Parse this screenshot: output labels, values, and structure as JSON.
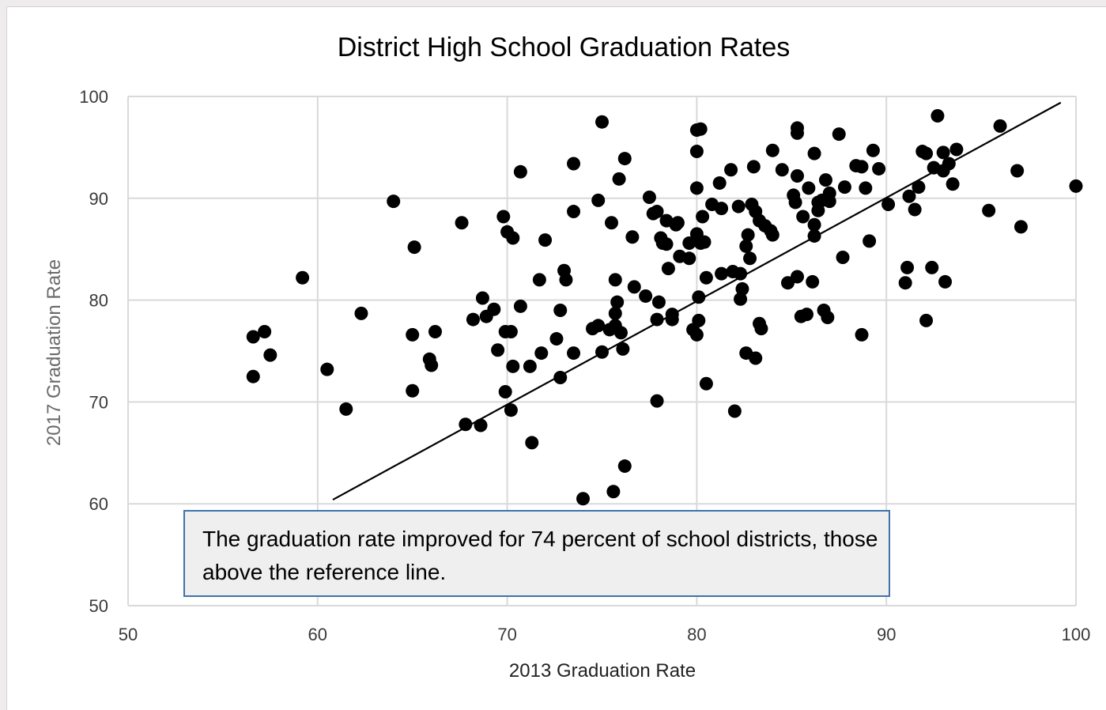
{
  "chart_data": {
    "type": "scatter",
    "title": "District High School Graduation Rates",
    "xlabel": "2013 Graduation Rate",
    "ylabel": "2017 Graduation Rate",
    "xlim": [
      50,
      100
    ],
    "ylim": [
      50,
      100
    ],
    "xticks": [
      "50",
      "60",
      "70",
      "80",
      "90",
      "100"
    ],
    "yticks": [
      "50",
      "60",
      "70",
      "80",
      "90",
      "100"
    ],
    "grid": true,
    "marker_color": "#000000",
    "reference_line": {
      "from": [
        60.8,
        60.4
      ],
      "to": [
        99.2,
        99.4
      ],
      "color": "#000000"
    },
    "annotation": "The graduation rate improved for 74 percent of school districts, those above the reference line.",
    "points": [
      [
        56.6,
        76.4
      ],
      [
        57.2,
        76.9
      ],
      [
        57.5,
        74.6
      ],
      [
        56.6,
        72.5
      ],
      [
        59.2,
        82.2
      ],
      [
        60.5,
        73.2
      ],
      [
        61.5,
        69.3
      ],
      [
        62.3,
        78.7
      ],
      [
        64,
        89.7
      ],
      [
        65.1,
        85.2
      ],
      [
        65,
        76.6
      ],
      [
        65,
        71.1
      ],
      [
        65.9,
        74.2
      ],
      [
        66,
        73.6
      ],
      [
        66.2,
        76.9
      ],
      [
        67.6,
        87.6
      ],
      [
        67.8,
        67.8
      ],
      [
        68.2,
        78.1
      ],
      [
        68.6,
        67.7
      ],
      [
        68.7,
        80.2
      ],
      [
        68.9,
        78.4
      ],
      [
        69.3,
        79.1
      ],
      [
        69.5,
        75.1
      ],
      [
        69.8,
        88.2
      ],
      [
        70,
        86.7
      ],
      [
        70.3,
        86.1
      ],
      [
        69.9,
        76.9
      ],
      [
        70.2,
        76.9
      ],
      [
        70.3,
        73.5
      ],
      [
        69.9,
        71
      ],
      [
        70.2,
        69.2
      ],
      [
        70.7,
        92.6
      ],
      [
        70.7,
        79.4
      ],
      [
        71.2,
        73.5
      ],
      [
        71.3,
        66
      ],
      [
        71.7,
        82
      ],
      [
        71.8,
        74.8
      ],
      [
        72,
        85.9
      ],
      [
        72.6,
        76.2
      ],
      [
        72.8,
        72.4
      ],
      [
        72.8,
        79
      ],
      [
        73,
        82.9
      ],
      [
        73.1,
        82
      ],
      [
        73.5,
        74.8
      ],
      [
        73.5,
        93.4
      ],
      [
        73.5,
        88.7
      ],
      [
        74,
        60.5
      ],
      [
        74.5,
        77.2
      ],
      [
        74.8,
        77.5
      ],
      [
        74.8,
        89.8
      ],
      [
        75,
        97.5
      ],
      [
        75,
        74.9
      ],
      [
        75.4,
        77.1
      ],
      [
        75.5,
        87.6
      ],
      [
        75.7,
        77.5
      ],
      [
        75.6,
        61.2
      ],
      [
        75.7,
        82
      ],
      [
        75.7,
        78.7
      ],
      [
        75.8,
        79.8
      ],
      [
        76,
        76.8
      ],
      [
        75.9,
        91.9
      ],
      [
        76.2,
        93.9
      ],
      [
        76.1,
        75.2
      ],
      [
        76.2,
        63.7
      ],
      [
        76.6,
        86.2
      ],
      [
        76.7,
        81.3
      ],
      [
        77.3,
        80.4
      ],
      [
        77.5,
        90.1
      ],
      [
        77.7,
        88.5
      ],
      [
        77.9,
        88.7
      ],
      [
        78.1,
        86.1
      ],
      [
        77.9,
        78.1
      ],
      [
        77.9,
        70.1
      ],
      [
        78,
        79.8
      ],
      [
        78.2,
        85.6
      ],
      [
        78.4,
        87.8
      ],
      [
        78.4,
        85.5
      ],
      [
        78.5,
        83.1
      ],
      [
        78.7,
        78.1
      ],
      [
        78.7,
        78.6
      ],
      [
        78.9,
        87.4
      ],
      [
        79,
        87.6
      ],
      [
        79.1,
        84.3
      ],
      [
        79.6,
        84.1
      ],
      [
        79.6,
        85.6
      ],
      [
        79.8,
        77.1
      ],
      [
        80,
        86.5
      ],
      [
        80,
        94.6
      ],
      [
        80,
        96.7
      ],
      [
        80.2,
        96.8
      ],
      [
        80,
        91
      ],
      [
        80.2,
        85.6
      ],
      [
        80.4,
        85.7
      ],
      [
        80,
        76.6
      ],
      [
        80.1,
        78
      ],
      [
        80.1,
        80.3
      ],
      [
        80.3,
        88.2
      ],
      [
        80.5,
        82.2
      ],
      [
        80.5,
        71.8
      ],
      [
        80.8,
        89.4
      ],
      [
        81.2,
        91.5
      ],
      [
        81.3,
        89
      ],
      [
        81.3,
        82.6
      ],
      [
        81.8,
        92.8
      ],
      [
        81.9,
        82.8
      ],
      [
        82,
        69.1
      ],
      [
        82.2,
        89.2
      ],
      [
        82.3,
        82.6
      ],
      [
        82.3,
        80.1
      ],
      [
        82.4,
        81.1
      ],
      [
        82.6,
        85.3
      ],
      [
        82.6,
        74.8
      ],
      [
        82.7,
        86.4
      ],
      [
        82.8,
        84.1
      ],
      [
        82.9,
        89.4
      ],
      [
        83.1,
        88.7
      ],
      [
        83,
        93.1
      ],
      [
        83.1,
        74.3
      ],
      [
        83.3,
        87.8
      ],
      [
        83.3,
        77.7
      ],
      [
        83.4,
        77.2
      ],
      [
        83.6,
        87.3
      ],
      [
        83.9,
        86.8
      ],
      [
        84,
        86.4
      ],
      [
        84,
        94.7
      ],
      [
        84.5,
        92.8
      ],
      [
        84.8,
        81.7
      ],
      [
        85.1,
        90.3
      ],
      [
        85.2,
        89.6
      ],
      [
        85.3,
        82.3
      ],
      [
        85.3,
        92.2
      ],
      [
        85.3,
        96.4
      ],
      [
        85.3,
        96.9
      ],
      [
        85.5,
        78.4
      ],
      [
        85.6,
        88.2
      ],
      [
        85.8,
        78.6
      ],
      [
        85.9,
        91
      ],
      [
        86.1,
        81.8
      ],
      [
        86.2,
        86.3
      ],
      [
        86.2,
        87.4
      ],
      [
        86.2,
        94.4
      ],
      [
        86.4,
        89.6
      ],
      [
        86.4,
        88.8
      ],
      [
        86.6,
        89.8
      ],
      [
        86.7,
        79
      ],
      [
        86.8,
        91.8
      ],
      [
        86.9,
        78.3
      ],
      [
        87,
        89.7
      ],
      [
        87,
        90.5
      ],
      [
        87.5,
        96.3
      ],
      [
        87.7,
        84.2
      ],
      [
        87.8,
        91.1
      ],
      [
        88.4,
        93.2
      ],
      [
        88.7,
        76.6
      ],
      [
        88.7,
        93.1
      ],
      [
        88.9,
        91
      ],
      [
        89.1,
        85.8
      ],
      [
        89.3,
        94.7
      ],
      [
        89.6,
        92.9
      ],
      [
        90.1,
        89.4
      ],
      [
        91,
        81.7
      ],
      [
        91.1,
        83.2
      ],
      [
        91.2,
        90.2
      ],
      [
        91.5,
        88.9
      ],
      [
        91.7,
        91.1
      ],
      [
        91.9,
        94.6
      ],
      [
        92.1,
        94.4
      ],
      [
        92.1,
        78
      ],
      [
        92.4,
        83.2
      ],
      [
        92.5,
        93
      ],
      [
        92.7,
        98.1
      ],
      [
        93,
        92.7
      ],
      [
        93,
        94.5
      ],
      [
        93.1,
        81.8
      ],
      [
        93.3,
        93.4
      ],
      [
        93.5,
        91.4
      ],
      [
        93.7,
        94.8
      ],
      [
        95.4,
        88.8
      ],
      [
        96,
        97.1
      ],
      [
        96.9,
        92.7
      ],
      [
        97.1,
        87.2
      ],
      [
        100,
        91.2
      ]
    ]
  }
}
